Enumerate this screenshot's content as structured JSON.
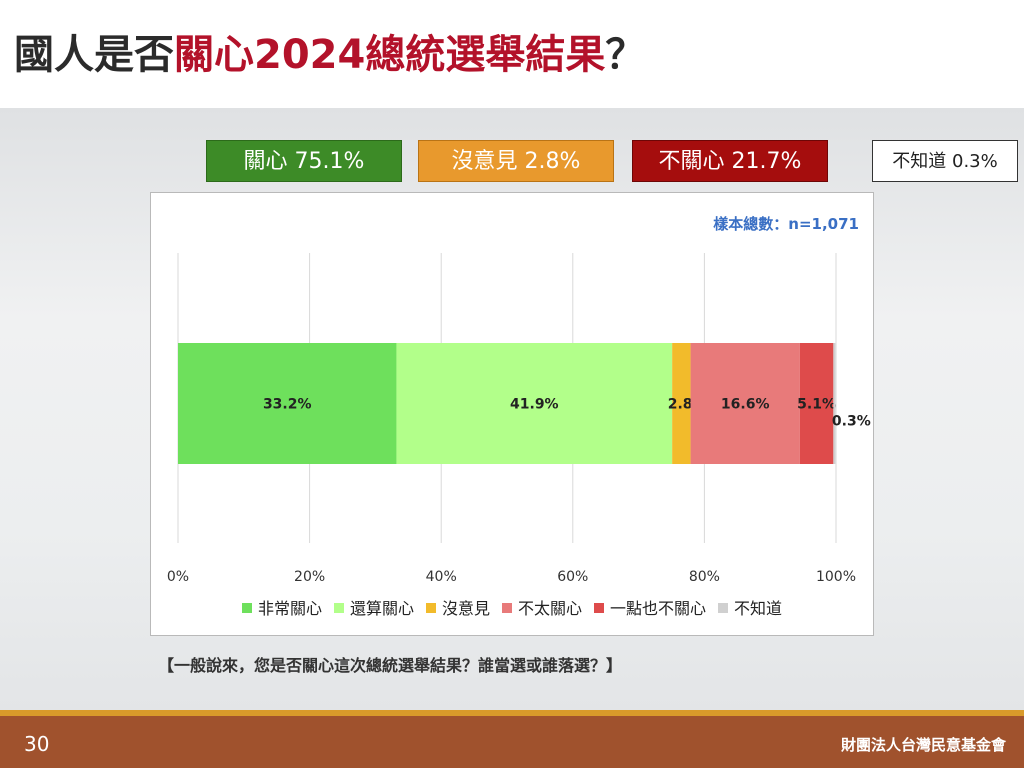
{
  "slide": {
    "title_before": "國人是否",
    "title_accent": "關心2024總統選舉結果",
    "title_after": "？",
    "question": "【一般說來，您是否關心這次總統選舉結果？誰當選或誰落選？】",
    "page_number": "30",
    "organization": "財團法人台灣民意基金會"
  },
  "summary": [
    {
      "label": "關心 75.1%",
      "bg": "#3d8b27",
      "fg": "#ffffff"
    },
    {
      "label": "沒意見 2.8%",
      "bg": "#e8992d",
      "fg": "#ffffff"
    },
    {
      "label": "不關心 21.7%",
      "bg": "#a50d0d",
      "fg": "#ffffff"
    },
    {
      "label": "不知道 0.3%",
      "bg": "#ffffff",
      "fg": "#222222"
    }
  ],
  "chart_data": {
    "type": "bar",
    "orientation": "horizontal-stacked",
    "sample_size": "樣本總數：n=1,071",
    "xlim": [
      0,
      100
    ],
    "ticks": [
      "0%",
      "20%",
      "40%",
      "60%",
      "80%",
      "100%"
    ],
    "series": [
      {
        "name": "非常關心",
        "value": 33.2,
        "label": "33.2%",
        "color": "#6ee05c"
      },
      {
        "name": "還算關心",
        "value": 41.9,
        "label": "41.9%",
        "color": "#b2ff8a"
      },
      {
        "name": "沒意見",
        "value": 2.8,
        "label": "2.8%",
        "color": "#f2bb2b"
      },
      {
        "name": "不太關心",
        "value": 16.6,
        "label": "16.6%",
        "color": "#e87a7a"
      },
      {
        "name": "一點也不關心",
        "value": 5.1,
        "label": "5.1%",
        "color": "#de4b4b"
      },
      {
        "name": "不知道",
        "value": 0.3,
        "label": "0.3%",
        "color": "#d0d0d0"
      }
    ],
    "legend_position": "bottom",
    "grid": true
  }
}
